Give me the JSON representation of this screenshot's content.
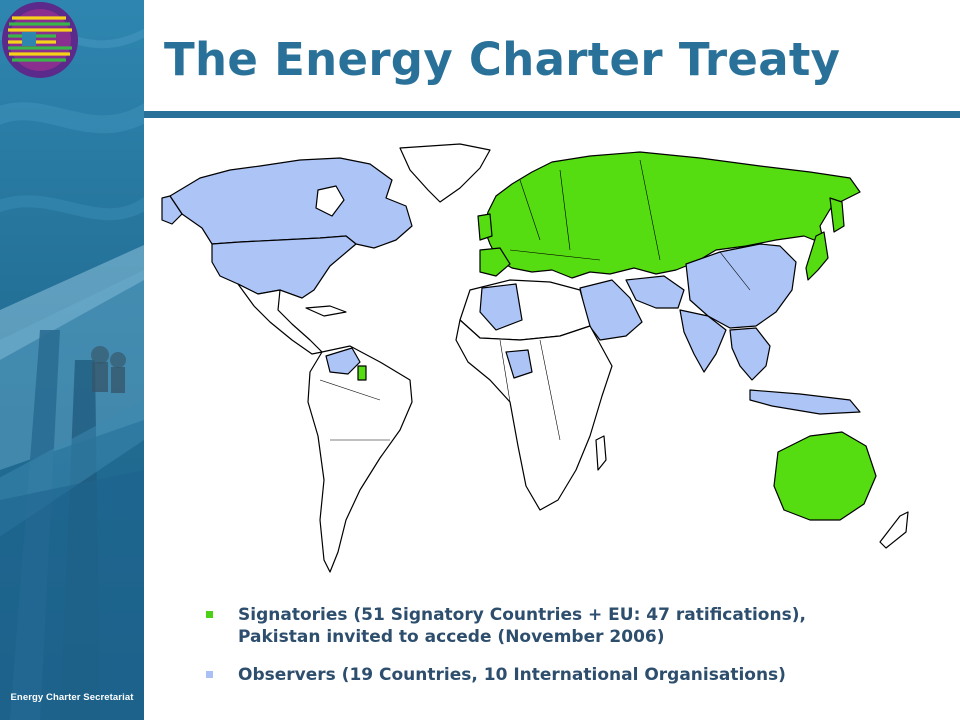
{
  "slide": {
    "title": "The Energy Charter Treaty",
    "footer": "Energy Charter Secretariat"
  },
  "legend": {
    "signatories": {
      "line1": "Signatories (51 Signatory Countries + EU: 47 ratifications),",
      "line2": "Pakistan invited to accede (November 2006)",
      "color": "#4cd116"
    },
    "observers": {
      "line1": "Observers (19 Countries, 10 International Organisations)",
      "color": "#a9bff5"
    }
  },
  "map": {
    "signatory_color": "#55dd11",
    "observer_color": "#adc4f7",
    "other_color": "#ffffff",
    "border_color": "#000000"
  },
  "icons": {
    "logo": "energy-charter-logo",
    "sidebar_photo": "pipeline-photo"
  }
}
